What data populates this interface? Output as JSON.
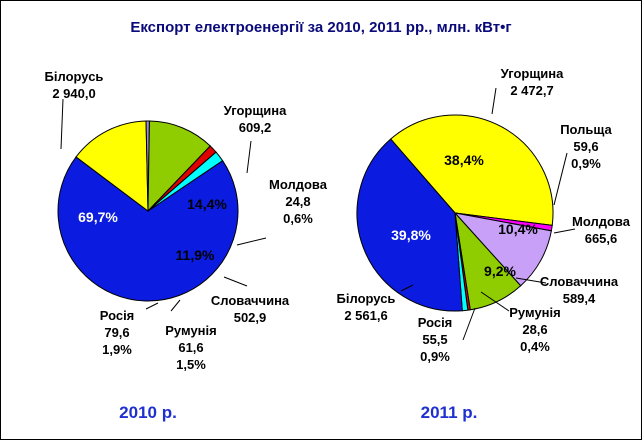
{
  "title": "Експорт електроенергії за 2010, 2011 рр., млн. кВт•г",
  "chart_data": [
    {
      "type": "pie",
      "year_label": "2010 р.",
      "slices": [
        {
          "name": "Білорусь",
          "value": "2 940,0",
          "percent": "69,7%",
          "share": 69.7,
          "color": "#0b1ce0",
          "pct_color": "#ffffff"
        },
        {
          "name": "Угорщина",
          "value": "609,2",
          "percent": "14,4%",
          "share": 14.4,
          "color": "#ffff00",
          "pct_color": "#000000"
        },
        {
          "name": "Молдова",
          "value": "24,8",
          "percent": "0,6%",
          "share": 0.6,
          "color": "#9a8ce6",
          "pct_color": "#000000"
        },
        {
          "name": "Словаччина",
          "value": "502,9",
          "percent": "11,9%",
          "share": 11.9,
          "color": "#8fcd00",
          "pct_color": "#000000"
        },
        {
          "name": "Румунія",
          "value": "61,6",
          "percent": "1,5%",
          "share": 1.5,
          "color": "#e00000",
          "pct_color": "#000000"
        },
        {
          "name": "Росія",
          "value": "79,6",
          "percent": "1,9%",
          "share": 1.9,
          "color": "#00ffff",
          "pct_color": "#000000"
        }
      ]
    },
    {
      "type": "pie",
      "year_label": "2011 р.",
      "slices": [
        {
          "name": "Угорщина",
          "value": "2 472,7",
          "percent": "38,4%",
          "share": 38.4,
          "color": "#ffff00",
          "pct_color": "#000000"
        },
        {
          "name": "Польща",
          "value": "59,6",
          "percent": "0,9%",
          "share": 0.9,
          "color": "#ff00ff",
          "pct_color": "#000000"
        },
        {
          "name": "Молдова",
          "value": "665,6",
          "percent": "10,4%",
          "share": 10.4,
          "color": "#c8a0f8",
          "pct_color": "#000000"
        },
        {
          "name": "Словаччина",
          "value": "589,4",
          "percent": "9,2%",
          "share": 9.2,
          "color": "#8fcd00",
          "pct_color": "#000000"
        },
        {
          "name": "Румунія",
          "value": "28,6",
          "percent": "0,4%",
          "share": 0.4,
          "color": "#e00000",
          "pct_color": "#000000"
        },
        {
          "name": "Росія",
          "value": "55,5",
          "percent": "0,9%",
          "share": 0.9,
          "color": "#00ffff",
          "pct_color": "#000000"
        },
        {
          "name": "Білорусь",
          "value": "2 561,6",
          "percent": "39,8%",
          "share": 39.8,
          "color": "#0b1ce0",
          "pct_color": "#ffffff"
        }
      ]
    }
  ]
}
